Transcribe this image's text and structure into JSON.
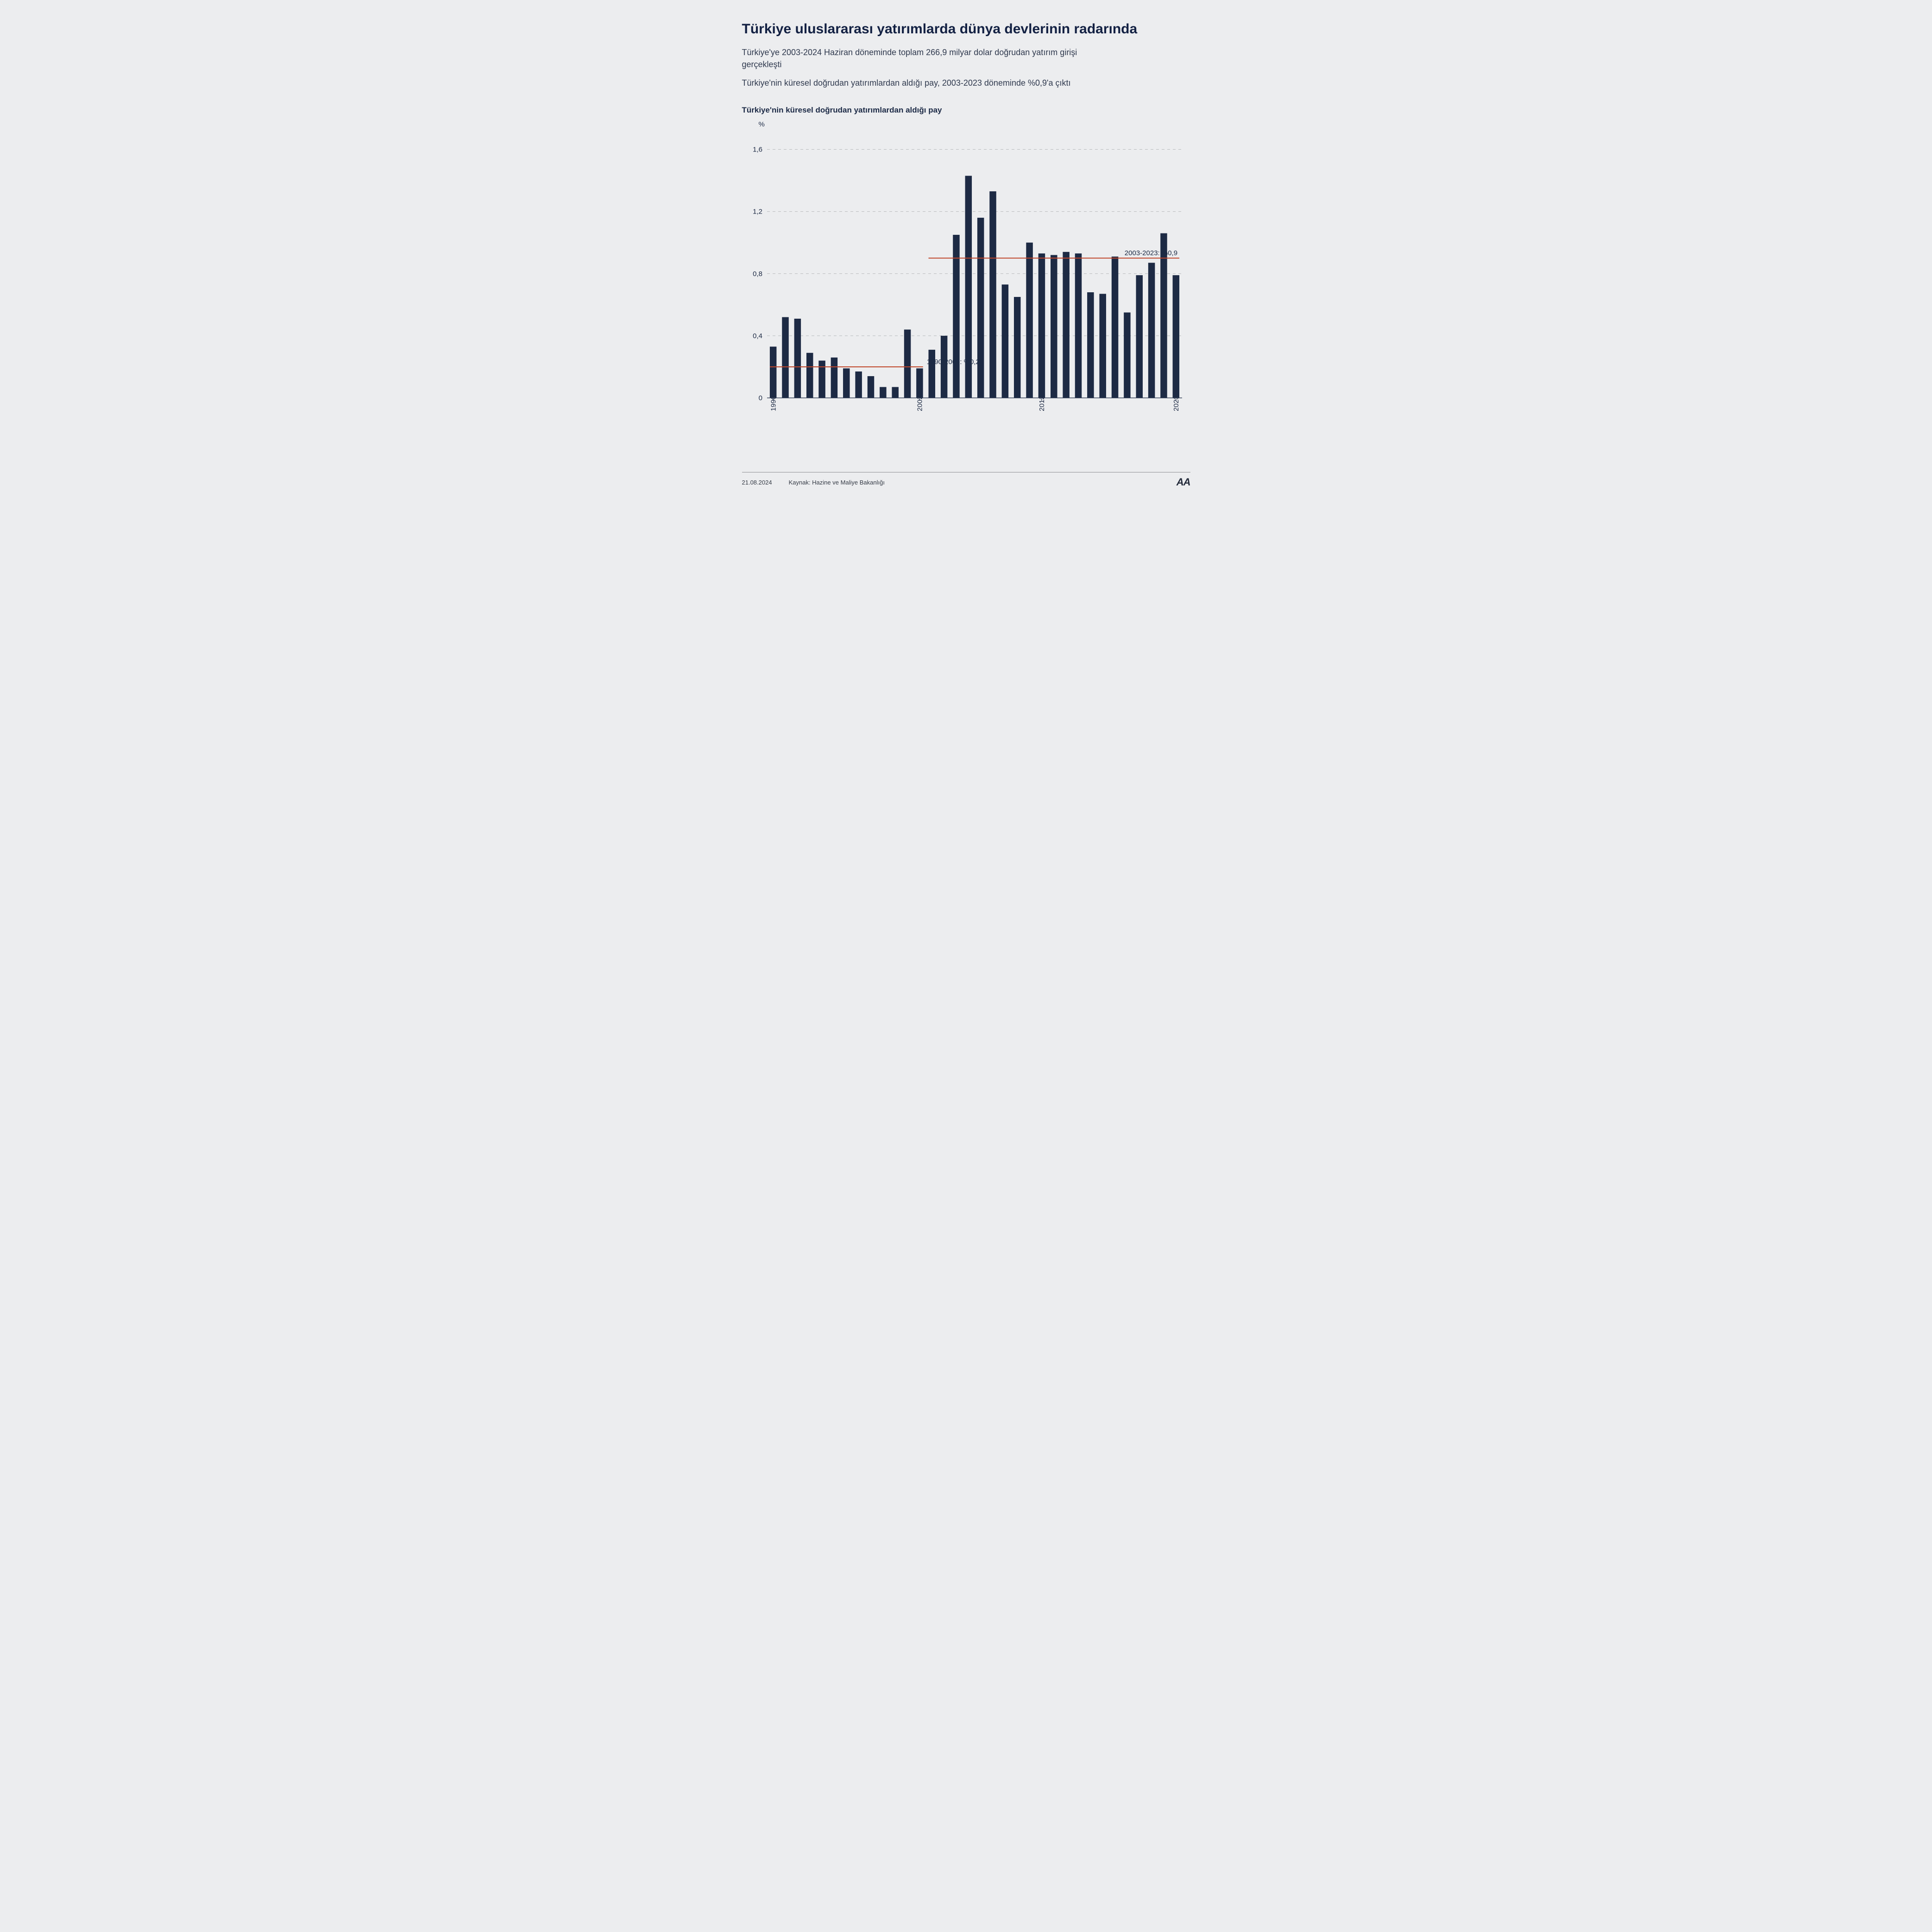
{
  "headline": "Türkiye uluslararası yatırımlarda dünya devlerinin radarında",
  "lede1": "Türkiye'ye 2003-2024 Haziran döneminde toplam 266,9 milyar dolar doğrudan yatırım girişi gerçekleşti",
  "lede2": "Türkiye'nin küresel doğrudan yatırımlardan aldığı pay, 2003-2023 döneminde %0,9'a çıktı",
  "chart": {
    "type": "bar",
    "title": "Türkiye'nin küresel doğrudan yatırımlardan aldığı pay",
    "unit_label": "%",
    "background_color": "#ecedef",
    "bar_color": "#1d2a44",
    "grid_color": "#b7b9bc",
    "axis_color": "#1d2a44",
    "avg_line_color": "#c0462a",
    "bar_width_ratio": 0.55,
    "yaxis": {
      "min": 0,
      "max": 1.7,
      "ticks": [
        0,
        0.4,
        0.8,
        1.2,
        1.6
      ],
      "tick_labels": [
        "0",
        "0,4",
        "0,8",
        "1,2",
        "1,6"
      ]
    },
    "xaxis": {
      "years": [
        1990,
        1991,
        1992,
        1993,
        1994,
        1995,
        1996,
        1997,
        1998,
        1999,
        2000,
        2001,
        2002,
        2003,
        2004,
        2005,
        2006,
        2007,
        2008,
        2009,
        2010,
        2011,
        2012,
        2013,
        2014,
        2015,
        2016,
        2017,
        2018,
        2019,
        2020,
        2021,
        2022,
        2023
      ],
      "tick_years": [
        1990,
        2002,
        2012,
        2023
      ]
    },
    "values": [
      0.33,
      0.52,
      0.51,
      0.29,
      0.24,
      0.26,
      0.19,
      0.17,
      0.14,
      0.07,
      0.07,
      0.44,
      0.19,
      0.31,
      0.4,
      1.05,
      1.43,
      1.16,
      1.33,
      0.73,
      0.65,
      1.0,
      0.93,
      0.92,
      0.94,
      0.93,
      0.68,
      0.67,
      0.91,
      0.55,
      0.79,
      0.87,
      1.06,
      0.79
    ],
    "averages": [
      {
        "label": "1990-2002: %0,2",
        "value": 0.2,
        "from_index": 0,
        "to_index": 12,
        "label_side": "right"
      },
      {
        "label": "2003-2023: %0,9",
        "value": 0.9,
        "from_index": 13,
        "to_index": 33,
        "label_side": "right"
      }
    ]
  },
  "footer": {
    "date": "21.08.2024",
    "source": "Kaynak: Hazine ve Maliye Bakanlığı",
    "logo": "AA"
  }
}
